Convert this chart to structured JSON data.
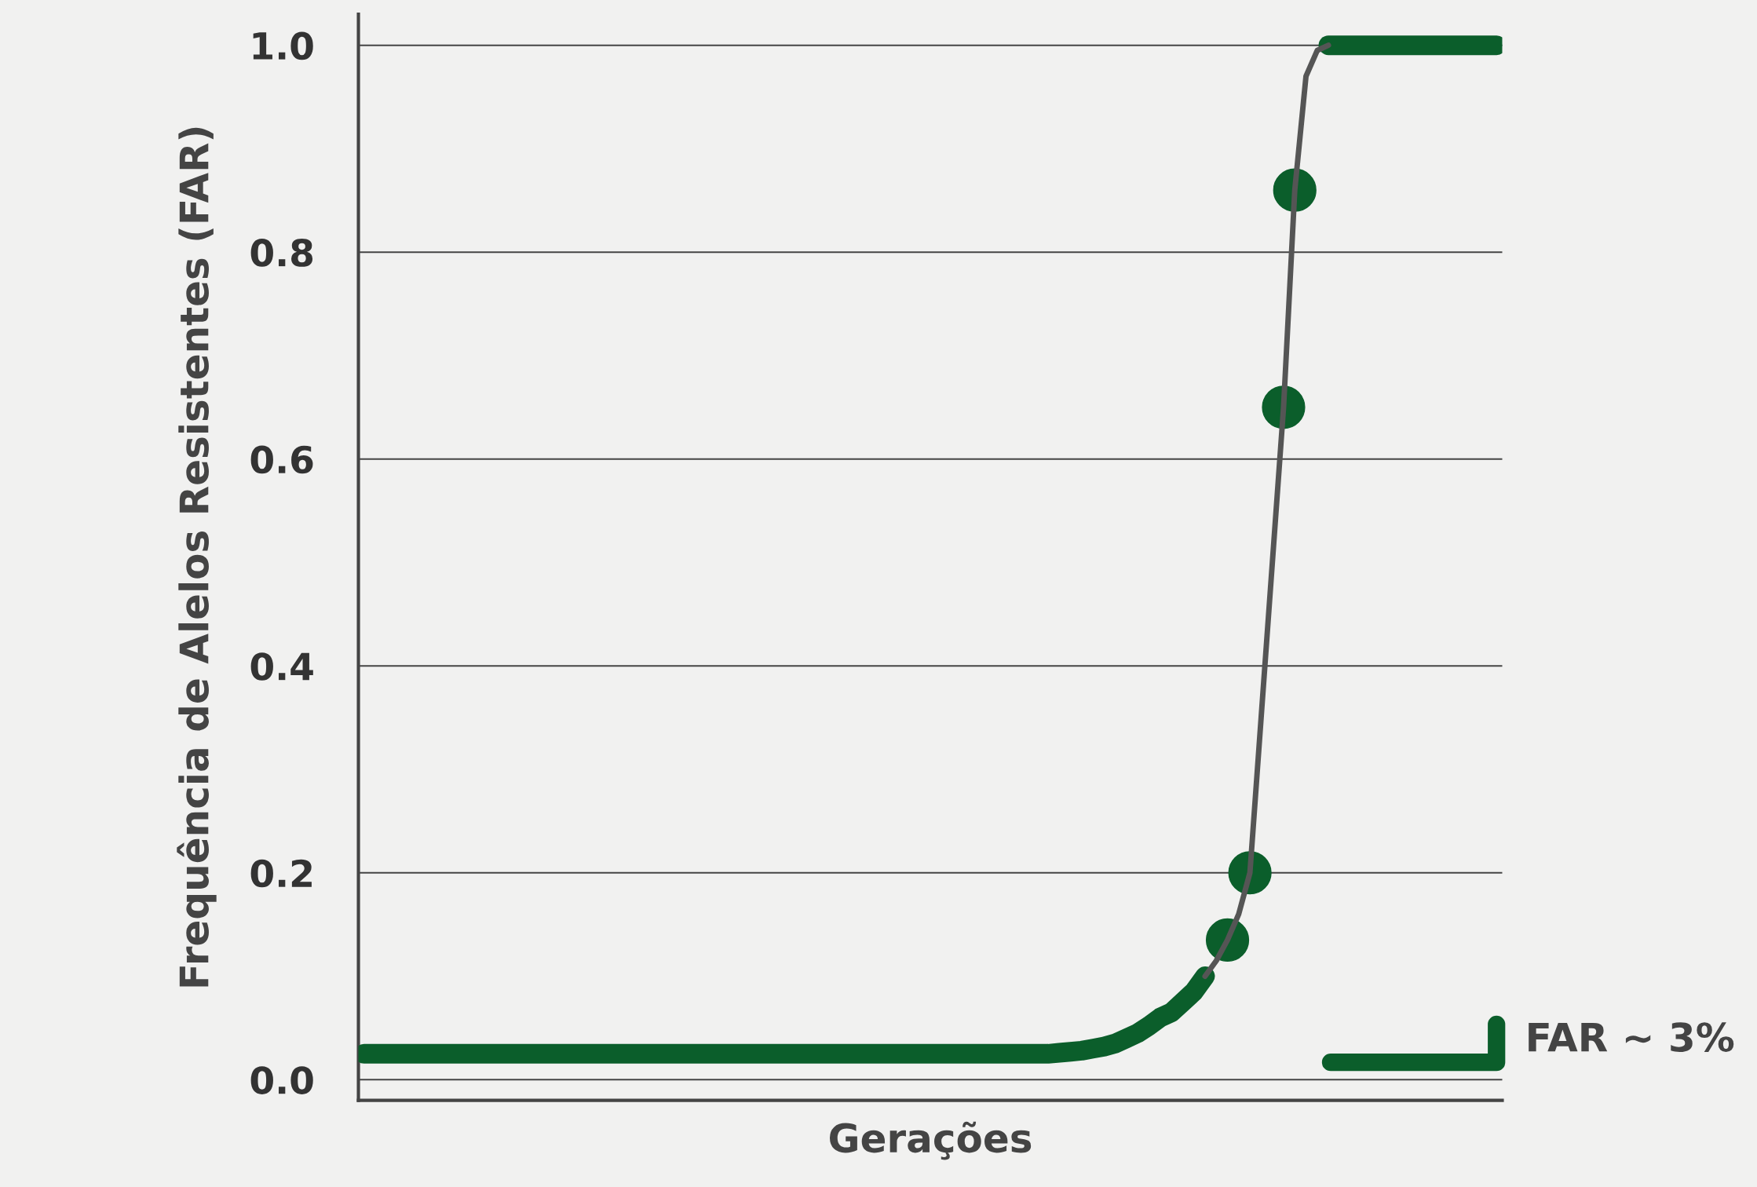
{
  "chart_data": {
    "type": "line",
    "ylabel": "Frequência de Alelos Resistentes (FAR)",
    "xlabel": "Gerações",
    "categories": [
      null,
      null,
      null,
      null,
      null,
      null,
      null,
      null,
      null,
      null,
      null,
      null,
      null,
      null,
      null,
      null,
      null,
      null,
      null,
      null,
      null,
      null,
      null,
      null,
      null,
      null,
      null,
      null,
      null,
      null,
      null,
      null,
      null,
      null,
      null,
      null,
      null,
      null,
      null,
      null,
      null,
      null,
      null,
      null,
      null,
      null,
      null,
      null,
      null,
      null,
      null,
      null,
      null,
      null,
      null,
      null,
      null,
      null,
      null,
      null,
      null,
      null,
      null,
      null,
      null,
      null,
      null,
      null,
      null,
      null,
      null,
      null,
      null,
      null,
      null,
      null,
      null,
      null,
      null,
      null,
      null,
      null,
      null,
      null,
      null,
      null,
      null,
      null,
      null,
      null,
      null,
      null,
      null,
      null,
      null,
      null,
      null,
      null,
      null,
      null,
      null,
      null
    ],
    "series": [
      {
        "color": "#0b5e2b",
        "values": [
          0.025,
          0.025,
          0.025,
          0.025,
          0.025,
          0.025,
          0.025,
          0.025,
          0.025,
          0.025,
          0.025,
          0.025,
          0.025,
          0.025,
          0.025,
          0.025,
          0.025,
          0.025,
          0.025,
          0.025,
          0.025,
          0.025,
          0.025,
          0.025,
          0.025,
          0.025,
          0.025,
          0.025,
          0.025,
          0.025,
          0.025,
          0.025,
          0.025,
          0.025,
          0.025,
          0.025,
          0.025,
          0.025,
          0.025,
          0.025,
          0.025,
          0.025,
          0.025,
          0.025,
          0.025,
          0.025,
          0.025,
          0.025,
          0.025,
          0.025,
          0.025,
          0.025,
          0.025,
          0.025,
          0.025,
          0.025,
          0.025,
          0.025,
          0.025,
          0.025,
          0.025,
          0.025,
          0.026,
          0.027,
          0.028,
          0.03,
          0.032,
          0.035,
          0.04,
          0.045,
          0.052,
          0.06,
          0.065,
          0.075,
          0.085,
          0.1,
          null,
          null,
          null,
          null,
          null,
          null,
          null,
          null,
          null,
          null,
          null,
          null,
          null,
          null,
          null,
          null,
          null,
          null,
          null,
          null,
          null,
          null,
          null,
          null,
          null,
          null
        ]
      },
      {
        "color": "#555555",
        "values": [
          null,
          null,
          null,
          null,
          null,
          null,
          null,
          null,
          null,
          null,
          null,
          null,
          null,
          null,
          null,
          null,
          null,
          null,
          null,
          null,
          null,
          null,
          null,
          null,
          null,
          null,
          null,
          null,
          null,
          null,
          null,
          null,
          null,
          null,
          null,
          null,
          null,
          null,
          null,
          null,
          null,
          null,
          null,
          null,
          null,
          null,
          null,
          null,
          null,
          null,
          null,
          null,
          null,
          null,
          null,
          null,
          null,
          null,
          null,
          null,
          null,
          null,
          null,
          null,
          null,
          null,
          null,
          null,
          null,
          null,
          null,
          null,
          null,
          null,
          null,
          0.1,
          0.115,
          0.135,
          0.16,
          0.2,
          0.35,
          0.5,
          0.65,
          0.86,
          0.97,
          0.995,
          1.0,
          null,
          null,
          null,
          null,
          null,
          null,
          null,
          null,
          null,
          null,
          null,
          null,
          null,
          null,
          null
        ]
      },
      {
        "color": "#0b5e2b",
        "values": [
          null,
          null,
          null,
          null,
          null,
          null,
          null,
          null,
          null,
          null,
          null,
          null,
          null,
          null,
          null,
          null,
          null,
          null,
          null,
          null,
          null,
          null,
          null,
          null,
          null,
          null,
          null,
          null,
          null,
          null,
          null,
          null,
          null,
          null,
          null,
          null,
          null,
          null,
          null,
          null,
          null,
          null,
          null,
          null,
          null,
          null,
          null,
          null,
          null,
          null,
          null,
          null,
          null,
          null,
          null,
          null,
          null,
          null,
          null,
          null,
          null,
          null,
          null,
          null,
          null,
          null,
          null,
          null,
          null,
          null,
          null,
          null,
          null,
          null,
          null,
          null,
          null,
          null,
          null,
          null,
          null,
          null,
          null,
          null,
          null,
          null,
          1.0,
          1.0,
          1.0,
          1.0,
          1.0,
          1.0,
          1.0,
          1.0,
          1.0,
          1.0,
          1.0,
          1.0,
          1.0,
          1.0,
          1.0,
          1.0
        ]
      },
      {
        "color": "#0b5e2b",
        "type": "scatter",
        "marker": "circle",
        "values": [
          null,
          null,
          null,
          null,
          null,
          null,
          null,
          null,
          null,
          null,
          null,
          null,
          null,
          null,
          null,
          null,
          null,
          null,
          null,
          null,
          null,
          null,
          null,
          null,
          null,
          null,
          null,
          null,
          null,
          null,
          null,
          null,
          null,
          null,
          null,
          null,
          null,
          null,
          null,
          null,
          null,
          null,
          null,
          null,
          null,
          null,
          null,
          null,
          null,
          null,
          null,
          null,
          null,
          null,
          null,
          null,
          null,
          null,
          null,
          null,
          null,
          null,
          null,
          null,
          null,
          null,
          null,
          null,
          null,
          null,
          null,
          null,
          null,
          null,
          null,
          null,
          null,
          0.135,
          null,
          0.2,
          null,
          null,
          0.65,
          0.86,
          null,
          null,
          null,
          null,
          null,
          null,
          null,
          null,
          null,
          null,
          null,
          null,
          null,
          null,
          null,
          null,
          null,
          null
        ]
      }
    ],
    "ylim": [
      -0.02,
      1.03
    ],
    "yticks": [
      {
        "value": 0,
        "label": "0.0"
      },
      {
        "value": 0.2,
        "label": "0.2"
      },
      {
        "value": 0.4,
        "label": "0.4"
      },
      {
        "value": 0.6,
        "label": "0.6"
      },
      {
        "value": 0.8,
        "label": "0.8"
      },
      {
        "value": 1,
        "label": "1.0"
      }
    ],
    "tick_labels": "y",
    "grid": "y",
    "line_style": "solid",
    "annotations": [
      "FAR ~ 3%"
    ]
  }
}
